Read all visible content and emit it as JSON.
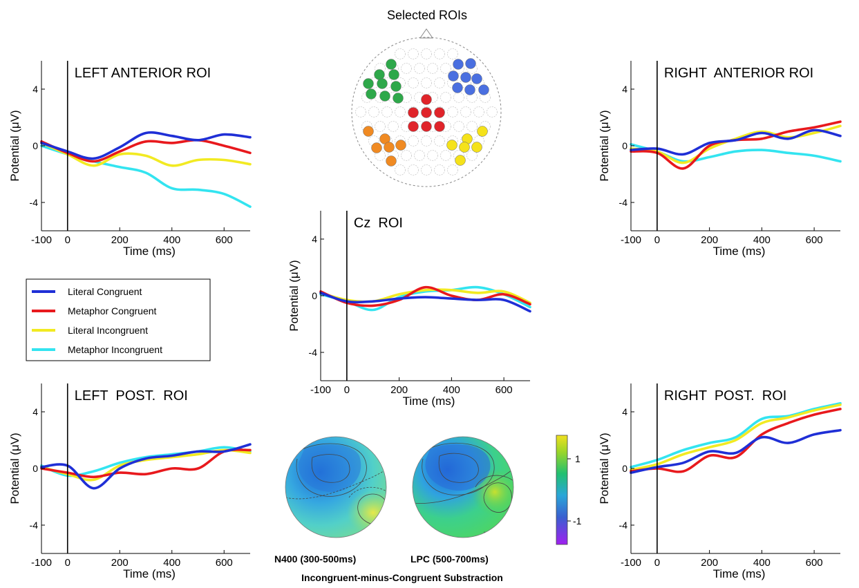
{
  "figure": {
    "roi_map_title": "Selected ROIs",
    "topo_captions": [
      "N400 (300-500ms)",
      "LPC (500-700ms)"
    ],
    "topo_subtitle": "Incongruent-minus-Congruent Substraction",
    "colorbar_ticks": [
      "1",
      "-1"
    ]
  },
  "colors": {
    "Literal Congruent": "#1f2fd6",
    "Metaphor Congruent": "#e8191d",
    "Literal Incongruent": "#f2ea22",
    "Metaphor Incongruent": "#33e4f0",
    "roi_green": "#2ea84a",
    "roi_blue": "#4a6fe0",
    "roi_red": "#e0242a",
    "roi_orange": "#f08a22",
    "roi_yellow": "#f5e21a"
  },
  "legend": {
    "entries": [
      "Literal Congruent",
      "Metaphor Congruent",
      "Literal Incongruent",
      "Metaphor Incongruent"
    ],
    "placement": "left-middle"
  },
  "chart_data": [
    {
      "type": "line",
      "title": "LEFT ANTERIOR ROI",
      "xlabel": "Time (ms)",
      "ylabel": "Potential (μV)",
      "xlim": [
        -100,
        700
      ],
      "ylim": [
        -6,
        6
      ],
      "xticks": [
        "-100",
        "0",
        "200",
        "400",
        "600"
      ],
      "yticks": [
        "4",
        "0",
        "-4"
      ],
      "x": [
        -100,
        0,
        100,
        200,
        300,
        400,
        500,
        600,
        700
      ],
      "series": [
        {
          "name": "Literal Congruent",
          "values": [
            0.2,
            -0.4,
            -0.9,
            -0.1,
            0.9,
            0.7,
            0.4,
            0.8,
            0.6
          ]
        },
        {
          "name": "Metaphor Congruent",
          "values": [
            0.3,
            -0.5,
            -1.1,
            -0.4,
            0.3,
            0.2,
            0.4,
            0.0,
            -0.5
          ]
        },
        {
          "name": "Literal Incongruent",
          "values": [
            0.2,
            -0.6,
            -1.4,
            -0.6,
            -0.7,
            -1.4,
            -1.0,
            -1.0,
            -1.3
          ]
        },
        {
          "name": "Metaphor Incongruent",
          "values": [
            0.0,
            -0.6,
            -1.1,
            -1.5,
            -1.9,
            -3.0,
            -3.1,
            -3.4,
            -4.3
          ]
        }
      ]
    },
    {
      "type": "line",
      "title": "RIGHT  ANTERIOR ROI",
      "xlabel": "Time (ms)",
      "ylabel": "Potential (μV)",
      "xlim": [
        -100,
        700
      ],
      "ylim": [
        -6,
        6
      ],
      "xticks": [
        "-100",
        "0",
        "200",
        "400",
        "600"
      ],
      "yticks": [
        "4",
        "0",
        "-4"
      ],
      "x": [
        -100,
        0,
        100,
        200,
        300,
        400,
        500,
        600,
        700
      ],
      "series": [
        {
          "name": "Literal Congruent",
          "values": [
            -0.3,
            -0.2,
            -0.6,
            0.2,
            0.4,
            0.9,
            0.5,
            1.1,
            0.7
          ]
        },
        {
          "name": "Metaphor Congruent",
          "values": [
            -0.4,
            -0.5,
            -1.6,
            0.0,
            0.4,
            0.5,
            1.0,
            1.3,
            1.7
          ]
        },
        {
          "name": "Literal Incongruent",
          "values": [
            -0.2,
            -0.4,
            -1.2,
            -0.2,
            0.5,
            1.0,
            0.6,
            0.9,
            1.4
          ]
        },
        {
          "name": "Metaphor Incongruent",
          "values": [
            0.1,
            -0.4,
            -1.1,
            -0.8,
            -0.4,
            -0.3,
            -0.5,
            -0.7,
            -1.1
          ]
        }
      ]
    },
    {
      "type": "line",
      "title": "Cz  ROI",
      "xlabel": "Time (ms)",
      "ylabel": "Potential (μV)",
      "xlim": [
        -100,
        700
      ],
      "ylim": [
        -6,
        6
      ],
      "xticks": [
        "-100",
        "0",
        "200",
        "400",
        "600"
      ],
      "yticks": [
        "4",
        "0",
        "-4"
      ],
      "x": [
        -100,
        0,
        100,
        200,
        300,
        400,
        500,
        600,
        700
      ],
      "series": [
        {
          "name": "Literal Congruent",
          "values": [
            0.2,
            -0.4,
            -0.4,
            -0.2,
            -0.1,
            -0.2,
            -0.3,
            -0.3,
            -1.1
          ]
        },
        {
          "name": "Metaphor Congruent",
          "values": [
            0.3,
            -0.5,
            -0.7,
            -0.3,
            0.6,
            0.0,
            -0.3,
            0.1,
            -0.6
          ]
        },
        {
          "name": "Literal Incongruent",
          "values": [
            0.2,
            -0.3,
            -0.4,
            0.1,
            0.4,
            0.4,
            0.2,
            0.3,
            -0.5
          ]
        },
        {
          "name": "Metaphor Incongruent",
          "values": [
            0.1,
            -0.4,
            -1.0,
            -0.1,
            0.3,
            0.4,
            0.6,
            0.1,
            -0.8
          ]
        }
      ]
    },
    {
      "type": "line",
      "title": "LEFT  POST.  ROI",
      "xlabel": "Time (ms)",
      "ylabel": "Potential (μV)",
      "xlim": [
        -100,
        700
      ],
      "ylim": [
        -6,
        6
      ],
      "xticks": [
        "-100",
        "0",
        "200",
        "400",
        "600"
      ],
      "yticks": [
        "4",
        "0",
        "-4"
      ],
      "x": [
        -100,
        0,
        100,
        200,
        300,
        400,
        500,
        600,
        700
      ],
      "series": [
        {
          "name": "Literal Congruent",
          "values": [
            0.1,
            0.2,
            -1.4,
            0.0,
            0.7,
            0.9,
            1.2,
            1.2,
            1.7
          ]
        },
        {
          "name": "Metaphor Congruent",
          "values": [
            0.0,
            -0.3,
            -0.6,
            -0.3,
            -0.4,
            0.0,
            0.0,
            1.2,
            1.3
          ]
        },
        {
          "name": "Literal Incongruent",
          "values": [
            0.1,
            -0.4,
            -0.8,
            0.2,
            0.6,
            0.8,
            1.0,
            1.3,
            1.1
          ]
        },
        {
          "name": "Metaphor Incongruent",
          "values": [
            0.2,
            -0.5,
            -0.2,
            0.4,
            0.8,
            1.0,
            1.2,
            1.5,
            1.2
          ]
        }
      ]
    },
    {
      "type": "line",
      "title": "RIGHT  POST.  ROI",
      "xlabel": "Time (ms)",
      "ylabel": "Potential (μV)",
      "xlim": [
        -100,
        700
      ],
      "ylim": [
        -6,
        6
      ],
      "xticks": [
        "-100",
        "0",
        "200",
        "400",
        "600"
      ],
      "yticks": [
        "4",
        "0",
        "-4"
      ],
      "x": [
        -100,
        0,
        100,
        200,
        300,
        400,
        500,
        600,
        700
      ],
      "series": [
        {
          "name": "Literal Congruent",
          "values": [
            -0.3,
            0.1,
            0.4,
            1.2,
            1.1,
            2.2,
            1.8,
            2.4,
            2.7
          ]
        },
        {
          "name": "Metaphor Congruent",
          "values": [
            -0.2,
            0.0,
            -0.2,
            0.9,
            0.8,
            2.4,
            3.2,
            3.8,
            4.2
          ]
        },
        {
          "name": "Literal Incongruent",
          "values": [
            -0.1,
            0.3,
            1.0,
            1.5,
            2.0,
            3.2,
            3.6,
            4.1,
            4.5
          ]
        },
        {
          "name": "Metaphor Incongruent",
          "values": [
            0.1,
            0.6,
            1.3,
            1.8,
            2.2,
            3.5,
            3.7,
            4.2,
            4.6
          ]
        }
      ]
    }
  ]
}
